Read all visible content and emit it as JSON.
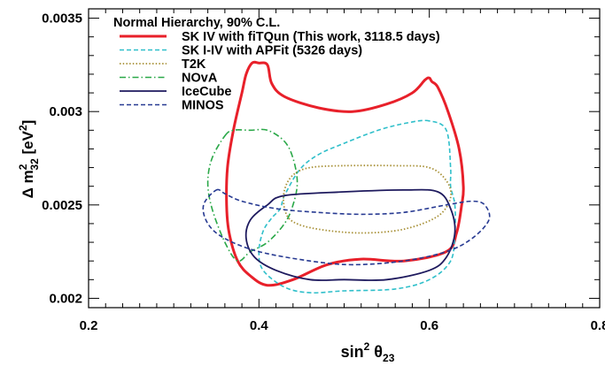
{
  "chart_data": {
    "type": "line",
    "title": "",
    "xlabel": "sin² θ₂₃",
    "ylabel": "Δ m²₃₂ [eV²]",
    "xlim": [
      0.2,
      0.8
    ],
    "ylim": [
      0.00195,
      0.00355
    ],
    "x_ticks": [
      {
        "value": 0.2,
        "label": "0.2"
      },
      {
        "value": 0.4,
        "label": "0.4"
      },
      {
        "value": 0.6,
        "label": "0.6"
      },
      {
        "value": 0.8,
        "label": "0.8"
      }
    ],
    "y_ticks": [
      {
        "value": 0.002,
        "label": "0.002"
      },
      {
        "value": 0.0025,
        "label": "0.0025"
      },
      {
        "value": 0.003,
        "label": "0.003"
      },
      {
        "value": 0.0035,
        "label": "0.0035"
      }
    ],
    "grid": false,
    "legend": {
      "placement": "top-left",
      "header": "Normal Hierarchy, 90% C.L."
    },
    "series": [
      {
        "name": "SK IV with fiTQun (This work, 3118.5 days)",
        "color": "#e8202a",
        "style": "solid",
        "width": 3,
        "points": [
          [
            0.4,
            0.00326
          ],
          [
            0.41,
            0.00325
          ],
          [
            0.415,
            0.00315
          ],
          [
            0.43,
            0.00308
          ],
          [
            0.47,
            0.00302
          ],
          [
            0.51,
            0.003
          ],
          [
            0.55,
            0.00304
          ],
          [
            0.58,
            0.0031
          ],
          [
            0.595,
            0.00317
          ],
          [
            0.6,
            0.00318
          ],
          [
            0.603,
            0.00316
          ],
          [
            0.61,
            0.00313
          ],
          [
            0.622,
            0.003
          ],
          [
            0.635,
            0.0028
          ],
          [
            0.64,
            0.0026
          ],
          [
            0.638,
            0.0025
          ],
          [
            0.632,
            0.00235
          ],
          [
            0.62,
            0.00225
          ],
          [
            0.57,
            0.0022
          ],
          [
            0.52,
            0.00221
          ],
          [
            0.48,
            0.00218
          ],
          [
            0.44,
            0.0021
          ],
          [
            0.41,
            0.00207
          ],
          [
            0.39,
            0.00212
          ],
          [
            0.375,
            0.0022
          ],
          [
            0.365,
            0.00235
          ],
          [
            0.362,
            0.0025
          ],
          [
            0.363,
            0.0027
          ],
          [
            0.37,
            0.0029
          ],
          [
            0.38,
            0.0031
          ],
          [
            0.385,
            0.0032
          ],
          [
            0.392,
            0.00326
          ],
          [
            0.4,
            0.00326
          ]
        ]
      },
      {
        "name": "SK I-IV with APFit (5326 days)",
        "color": "#2fbfca",
        "style": "dashed",
        "width": 1.6,
        "points": [
          [
            0.6,
            0.00295
          ],
          [
            0.575,
            0.00294
          ],
          [
            0.54,
            0.0029
          ],
          [
            0.5,
            0.00283
          ],
          [
            0.47,
            0.00277
          ],
          [
            0.448,
            0.00269
          ],
          [
            0.43,
            0.00255
          ],
          [
            0.425,
            0.00248
          ],
          [
            0.415,
            0.00243
          ],
          [
            0.405,
            0.00236
          ],
          [
            0.4,
            0.00225
          ],
          [
            0.405,
            0.00215
          ],
          [
            0.43,
            0.00206
          ],
          [
            0.46,
            0.00203
          ],
          [
            0.5,
            0.00204
          ],
          [
            0.56,
            0.00205
          ],
          [
            0.6,
            0.0021
          ],
          [
            0.625,
            0.0022
          ],
          [
            0.63,
            0.00235
          ],
          [
            0.63,
            0.0025
          ],
          [
            0.625,
            0.0026
          ],
          [
            0.625,
            0.0027
          ],
          [
            0.62,
            0.0029
          ],
          [
            0.6,
            0.00295
          ]
        ]
      },
      {
        "name": "T2K",
        "color": "#a89138",
        "style": "dotted",
        "width": 1.8,
        "points": [
          [
            0.5,
            0.00271
          ],
          [
            0.56,
            0.00271
          ],
          [
            0.6,
            0.0027
          ],
          [
            0.62,
            0.00263
          ],
          [
            0.625,
            0.00254
          ],
          [
            0.61,
            0.00244
          ],
          [
            0.57,
            0.00237
          ],
          [
            0.52,
            0.00235
          ],
          [
            0.47,
            0.00237
          ],
          [
            0.44,
            0.00241
          ],
          [
            0.43,
            0.00248
          ],
          [
            0.43,
            0.00258
          ],
          [
            0.44,
            0.00266
          ],
          [
            0.46,
            0.0027
          ],
          [
            0.5,
            0.00271
          ]
        ]
      },
      {
        "name": "NOvA",
        "color": "#2aa848",
        "style": "dashdot",
        "width": 1.6,
        "points": [
          [
            0.36,
            0.00287
          ],
          [
            0.37,
            0.0029
          ],
          [
            0.39,
            0.0029
          ],
          [
            0.41,
            0.0029
          ],
          [
            0.43,
            0.00284
          ],
          [
            0.44,
            0.00275
          ],
          [
            0.445,
            0.00262
          ],
          [
            0.44,
            0.0025
          ],
          [
            0.43,
            0.0024
          ],
          [
            0.41,
            0.0023
          ],
          [
            0.39,
            0.00225
          ],
          [
            0.375,
            0.0022
          ],
          [
            0.36,
            0.0023
          ],
          [
            0.345,
            0.00248
          ],
          [
            0.34,
            0.00262
          ],
          [
            0.345,
            0.00275
          ],
          [
            0.36,
            0.00287
          ]
        ]
      },
      {
        "name": "IceCube",
        "color": "#1e1a5e",
        "style": "solid",
        "width": 1.8,
        "points": [
          [
            0.43,
            0.00255
          ],
          [
            0.5,
            0.00257
          ],
          [
            0.57,
            0.00258
          ],
          [
            0.61,
            0.00257
          ],
          [
            0.625,
            0.00248
          ],
          [
            0.63,
            0.00235
          ],
          [
            0.62,
            0.00222
          ],
          [
            0.6,
            0.00215
          ],
          [
            0.55,
            0.0021
          ],
          [
            0.5,
            0.0021
          ],
          [
            0.46,
            0.0021
          ],
          [
            0.42,
            0.00215
          ],
          [
            0.395,
            0.00222
          ],
          [
            0.385,
            0.00232
          ],
          [
            0.39,
            0.00242
          ],
          [
            0.41,
            0.0025
          ],
          [
            0.43,
            0.00255
          ]
        ]
      },
      {
        "name": "MINOS",
        "color": "#273a92",
        "style": "dashed",
        "width": 1.6,
        "points": [
          [
            0.35,
            0.00258
          ],
          [
            0.36,
            0.00256
          ],
          [
            0.38,
            0.00252
          ],
          [
            0.42,
            0.00248
          ],
          [
            0.47,
            0.00246
          ],
          [
            0.52,
            0.00245
          ],
          [
            0.57,
            0.00246
          ],
          [
            0.62,
            0.0025
          ],
          [
            0.65,
            0.00252
          ],
          [
            0.665,
            0.0025
          ],
          [
            0.67,
            0.00242
          ],
          [
            0.65,
            0.00232
          ],
          [
            0.62,
            0.00225
          ],
          [
            0.57,
            0.0022
          ],
          [
            0.51,
            0.00218
          ],
          [
            0.46,
            0.0022
          ],
          [
            0.4,
            0.00225
          ],
          [
            0.36,
            0.00232
          ],
          [
            0.34,
            0.0024
          ],
          [
            0.335,
            0.0025
          ],
          [
            0.35,
            0.00258
          ]
        ]
      }
    ]
  }
}
